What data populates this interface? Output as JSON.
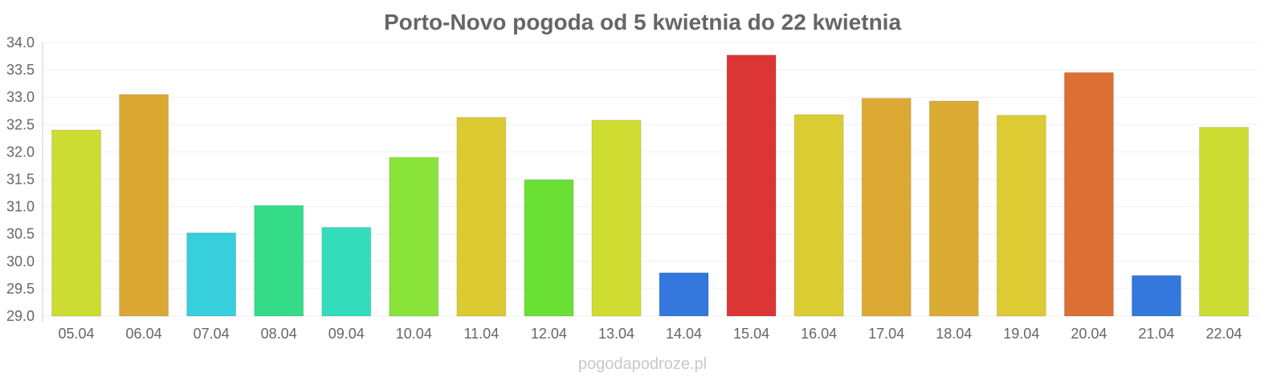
{
  "chart_data": {
    "type": "bar",
    "title": "Porto-Novo pogoda od 5 kwietnia do 22 kwietnia",
    "xlabel": "",
    "ylabel": "",
    "ylim": [
      29.0,
      34.0
    ],
    "yticks": [
      "29.0",
      "29.5",
      "30.0",
      "30.5",
      "31.0",
      "31.5",
      "32.0",
      "32.5",
      "33.0",
      "33.5",
      "34.0"
    ],
    "categories": [
      "05.04",
      "06.04",
      "07.04",
      "08.04",
      "09.04",
      "10.04",
      "11.04",
      "12.04",
      "13.04",
      "14.04",
      "15.04",
      "16.04",
      "17.04",
      "18.04",
      "19.04",
      "20.04",
      "21.04",
      "22.04"
    ],
    "values": [
      32.4,
      33.05,
      30.52,
      31.02,
      30.62,
      31.9,
      32.63,
      31.49,
      32.58,
      29.79,
      33.77,
      32.68,
      32.98,
      32.93,
      32.67,
      33.45,
      29.74,
      32.45
    ],
    "colors": [
      "#cddc32",
      "#dca732",
      "#36cfdb",
      "#34dc8a",
      "#33ddbb",
      "#8ae33a",
      "#dcca32",
      "#6adf34",
      "#cfdd33",
      "#3477dd",
      "#dc3535",
      "#dccc33",
      "#dcaa34",
      "#dcab33",
      "#dccb33",
      "#dc6f33",
      "#3477dd",
      "#cddc33"
    ],
    "grid": true,
    "legend": "none"
  },
  "watermark": "pogodapodroze.pl"
}
